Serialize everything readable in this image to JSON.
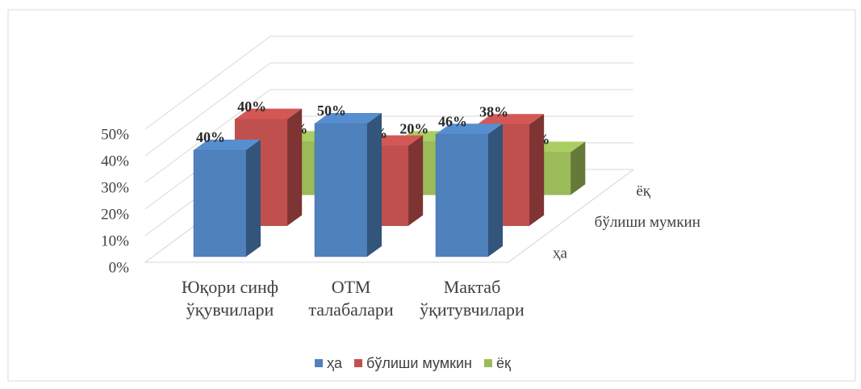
{
  "chart_data": {
    "type": "bar3d",
    "categories": [
      "Юқори синф ўқувчилари",
      "ОТМ талабалари",
      "Мактаб ўқитувчилари"
    ],
    "series": [
      {
        "name": "ҳа",
        "color": "#4f81bd",
        "values": [
          40,
          50,
          46
        ],
        "value_labels": [
          "40%",
          "50%",
          "46%"
        ]
      },
      {
        "name": "бўлиши мумкин",
        "color": "#c0504d",
        "values": [
          40,
          30,
          38
        ],
        "value_labels": [
          "40%",
          "30%",
          "38%"
        ]
      },
      {
        "name": "ёқ",
        "color": "#9bbb59",
        "values": [
          20,
          20,
          16
        ],
        "value_labels": [
          "20%",
          "20%",
          "16%"
        ]
      }
    ],
    "ylim": [
      0,
      50
    ],
    "yticks": [
      {
        "value": 0,
        "label": "0%"
      },
      {
        "value": 10,
        "label": "10%"
      },
      {
        "value": 20,
        "label": "20%"
      },
      {
        "value": 30,
        "label": "30%"
      },
      {
        "value": 40,
        "label": "40%"
      },
      {
        "value": 50,
        "label": "50%"
      }
    ],
    "grid": true,
    "legend": "bottom"
  }
}
